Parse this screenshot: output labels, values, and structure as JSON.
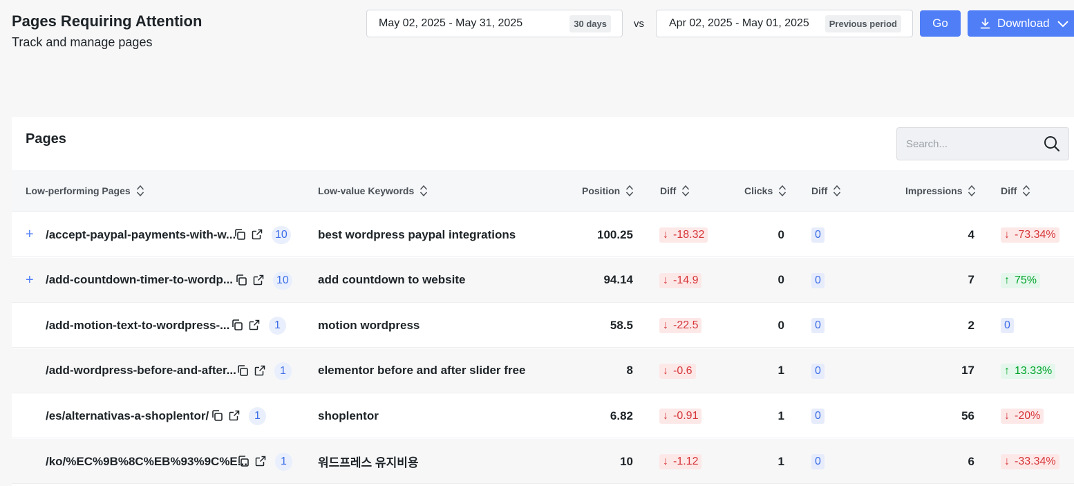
{
  "header": {
    "title": "Pages Requiring Attention",
    "subtitle": "Track and manage pages"
  },
  "date_range": {
    "current": {
      "label": "May 02, 2025 - May 31, 2025",
      "badge": "30 days"
    },
    "vs": "vs",
    "previous": {
      "label": "Apr 02, 2025 - May 01, 2025",
      "badge": "Previous period"
    },
    "go_label": "Go",
    "download_label": "Download"
  },
  "table": {
    "title": "Pages",
    "search_placeholder": "Search...",
    "columns": {
      "pages": "Low-performing Pages",
      "keywords": "Low-value Keywords",
      "position": "Position",
      "position_diff": "Diff",
      "clicks": "Clicks",
      "clicks_diff": "Diff",
      "impressions": "Impressions",
      "impressions_diff": "Diff"
    },
    "rows": [
      {
        "expandable": true,
        "page": "/accept-paypal-payments-with-w...",
        "count": "10",
        "keyword": "best wordpress paypal integrations",
        "position": "100.25",
        "position_diff": "-18.32",
        "position_trend": "down",
        "clicks": "0",
        "clicks_diff": "0",
        "clicks_trend": "none",
        "impressions": "4",
        "impressions_diff": "-73.34%",
        "impressions_trend": "down"
      },
      {
        "expandable": true,
        "page": "/add-countdown-timer-to-wordp...",
        "count": "10",
        "keyword": "add countdown to website",
        "position": "94.14",
        "position_diff": "-14.9",
        "position_trend": "down",
        "clicks": "0",
        "clicks_diff": "0",
        "clicks_trend": "none",
        "impressions": "7",
        "impressions_diff": "75%",
        "impressions_trend": "up"
      },
      {
        "expandable": false,
        "page": "/add-motion-text-to-wordpress-...",
        "count": "1",
        "keyword": "motion wordpress",
        "position": "58.5",
        "position_diff": "-22.5",
        "position_trend": "down",
        "clicks": "0",
        "clicks_diff": "0",
        "clicks_trend": "none",
        "impressions": "2",
        "impressions_diff": "0",
        "impressions_trend": "none"
      },
      {
        "expandable": false,
        "page": "/add-wordpress-before-and-after...",
        "count": "1",
        "keyword": "elementor before and after slider free",
        "position": "8",
        "position_diff": "-0.6",
        "position_trend": "down",
        "clicks": "1",
        "clicks_diff": "0",
        "clicks_trend": "none",
        "impressions": "17",
        "impressions_diff": "13.33%",
        "impressions_trend": "up"
      },
      {
        "expandable": false,
        "page": "/es/alternativas-a-shoplentor/",
        "count": "1",
        "keyword": "shoplentor",
        "position": "6.82",
        "position_diff": "-0.91",
        "position_trend": "down",
        "clicks": "1",
        "clicks_diff": "0",
        "clicks_trend": "none",
        "impressions": "56",
        "impressions_diff": "-20%",
        "impressions_trend": "down"
      },
      {
        "expandable": false,
        "page": "/ko/%EC%9B%8C%EB%93%9C%E...",
        "count": "1",
        "keyword": "워드프레스 유지비용",
        "position": "10",
        "position_diff": "-1.12",
        "position_trend": "down",
        "clicks": "1",
        "clicks_diff": "0",
        "clicks_trend": "none",
        "impressions": "6",
        "impressions_diff": "-33.34%",
        "impressions_trend": "down"
      }
    ]
  }
}
